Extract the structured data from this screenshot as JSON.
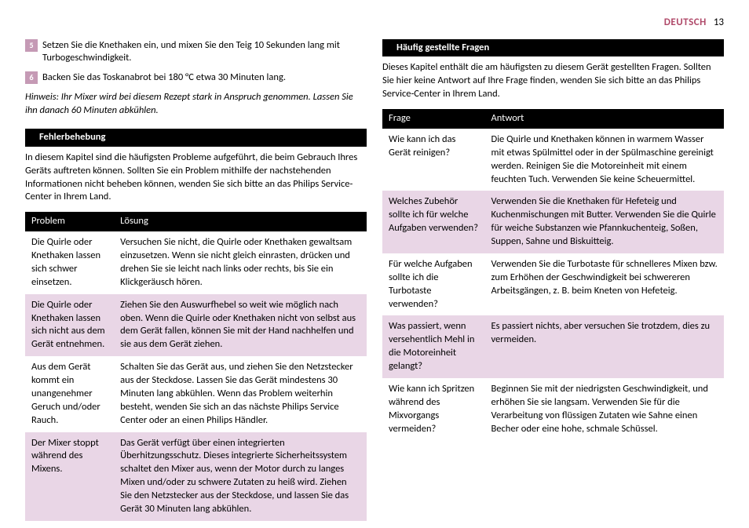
{
  "header": {
    "language": "DEUTSCH",
    "page_number": "13"
  },
  "left": {
    "steps": [
      {
        "n": "5",
        "text": "Setzen Sie die Knethaken ein, und mixen Sie den Teig 10 Sekunden lang mit Turbogeschwindigkeit."
      },
      {
        "n": "6",
        "text": "Backen Sie das Toskanabrot bei 180 °C etwa 30 Minuten lang."
      }
    ],
    "note": "Hinweis: Ihr Mixer wird bei diesem Rezept stark in Anspruch genommen. Lassen Sie ihn danach 60 Minuten abkühlen.",
    "troubleshoot_heading": "Fehlerbehebung",
    "troubleshoot_intro": "In diesem Kapitel sind die häufigsten Probleme aufgeführt, die beim Gebrauch Ihres Geräts auftreten können. Sollten Sie ein Problem mithilfe der nachstehenden Informationen nicht beheben können, wenden Sie sich bitte an das Philips Service-Center in Ihrem Land.",
    "table_headers": {
      "problem": "Problem",
      "solution": "Lösung"
    },
    "rows": [
      {
        "problem": "Die Quirle oder Knethaken lassen sich schwer einsetzen.",
        "solution": "Versuchen Sie nicht, die Quirle oder Knethaken gewaltsam einzusetzen. Wenn sie nicht gleich einrasten, drücken und drehen Sie sie leicht nach links oder rechts, bis Sie ein Klickgeräusch hören."
      },
      {
        "problem": "Die Quirle oder Knethaken lassen sich nicht aus dem Gerät entnehmen.",
        "solution": "Ziehen Sie den Auswurfhebel so weit wie möglich nach oben. Wenn die Quirle oder Knethaken nicht von selbst aus dem Gerät fallen, können Sie mit der Hand nachhelfen und sie aus dem Gerät ziehen."
      },
      {
        "problem": "Aus dem Gerät kommt ein unangenehmer Geruch und/oder Rauch.",
        "solution": "Schalten Sie das Gerät aus, und ziehen Sie den Netzstecker aus der Steckdose. Lassen Sie das Gerät mindestens 30 Minuten lang abkühlen. Wenn das Problem weiterhin besteht, wenden Sie sich an das nächste Philips Service Center oder an einen Philips Händler."
      },
      {
        "problem": "Der Mixer stoppt während des Mixens.",
        "solution": "Das Gerät verfügt über einen integrierten Überhitzungsschutz. Dieses integrierte Sicherheitssystem schaltet den Mixer aus, wenn der Motor durch zu langes Mixen und/oder zu schwere Zutaten zu heiß wird. Ziehen Sie den Netzstecker aus der Steckdose, und lassen Sie das Gerät 30 Minuten lang abkühlen."
      }
    ]
  },
  "right": {
    "faq_heading": "Häufig gestellte Fragen",
    "faq_intro": "Dieses Kapitel enthält die am häufigsten zu diesem Gerät gestellten Fragen. Sollten Sie hier keine Antwort auf Ihre Frage finden, wenden Sie sich bitte an das Philips Service-Center in Ihrem Land.",
    "table_headers": {
      "question": "Frage",
      "answer": "Antwort"
    },
    "rows": [
      {
        "question": "Wie kann ich das Gerät reinigen?",
        "answer": "Die Quirle und Knethaken können in warmem Wasser mit etwas Spülmittel oder in der Spülmaschine gereinigt werden. Reinigen Sie die Motoreinheit mit einem feuchten Tuch. Verwenden Sie keine Scheuermittel."
      },
      {
        "question": "Welches Zubehör sollte ich für welche Aufgaben verwenden?",
        "answer": "Verwenden Sie die Knethaken für Hefeteig und Kuchenmischungen mit Butter. Verwenden Sie die Quirle für weiche Substanzen wie Pfannkuchenteig, Soßen, Suppen, Sahne und Biskuitteig."
      },
      {
        "question": "Für welche Aufgaben sollte ich die Turbotaste verwenden?",
        "answer": "Verwenden Sie die Turbotaste für schnelleres Mixen bzw. zum Erhöhen der Geschwindigkeit bei schwereren Arbeitsgängen, z. B. beim Kneten von Hefeteig."
      },
      {
        "question": "Was passiert, wenn versehentlich Mehl in die Motoreinheit gelangt?",
        "answer": "Es passiert nichts, aber versuchen Sie trotzdem, dies zu vermeiden."
      },
      {
        "question": "Wie kann ich Spritzen während des Mixvorgangs vermeiden?",
        "answer": "Beginnen Sie mit der niedrigsten Geschwindigkeit, und erhöhen Sie sie langsam. Verwenden Sie für die Verarbeitung von flüssigen Zutaten wie Sahne einen Becher oder eine hohe, schmale Schüssel."
      }
    ]
  }
}
